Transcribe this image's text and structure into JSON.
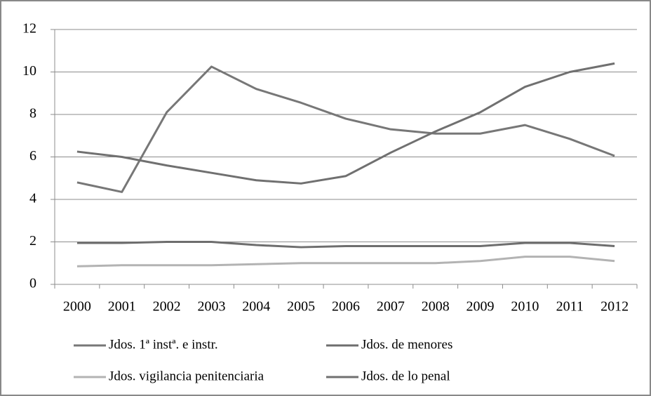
{
  "chart_data": {
    "type": "line",
    "categories": [
      "2000",
      "2001",
      "2002",
      "2003",
      "2004",
      "2005",
      "2006",
      "2007",
      "2008",
      "2009",
      "2010",
      "2011",
      "2012"
    ],
    "series": [
      {
        "name": "Jdos. 1ª instª. e instr.",
        "color": "#777777",
        "values": [
          4.8,
          4.35,
          8.1,
          10.25,
          9.2,
          8.55,
          7.8,
          7.3,
          7.1,
          7.1,
          7.5,
          6.85,
          6.05
        ]
      },
      {
        "name": "Jdos. de menores",
        "color": "#6e6e6e",
        "values": [
          1.95,
          1.95,
          2.0,
          2.0,
          1.85,
          1.75,
          1.8,
          1.8,
          1.8,
          1.8,
          1.95,
          1.95,
          1.8
        ]
      },
      {
        "name": "Jdos. vigilancia penitenciaria",
        "color": "#b3b3b3",
        "values": [
          0.85,
          0.9,
          0.9,
          0.9,
          0.95,
          1.0,
          1.0,
          1.0,
          1.0,
          1.1,
          1.3,
          1.3,
          1.1
        ]
      },
      {
        "name": "Jdos. de lo penal",
        "color": "#707070",
        "values": [
          6.25,
          6.0,
          5.6,
          5.25,
          4.9,
          4.75,
          5.1,
          6.2,
          7.2,
          8.1,
          9.3,
          10.0,
          10.4
        ]
      }
    ],
    "ylim": [
      0,
      12
    ],
    "yticks": [
      0,
      2,
      4,
      6,
      8,
      10,
      12
    ],
    "grid": true
  }
}
